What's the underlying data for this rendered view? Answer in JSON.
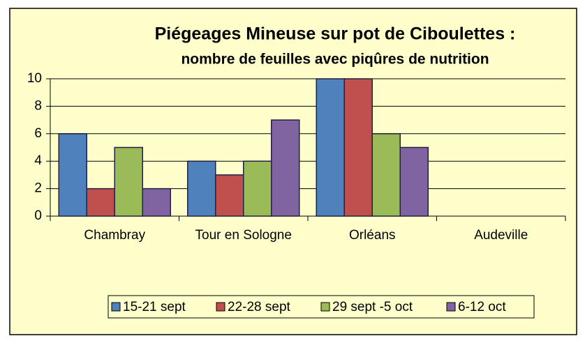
{
  "chart_data": {
    "type": "bar",
    "title": "Piégeages Mineuse sur pot de Ciboulettes :",
    "subtitle": "nombre de feuilles avec piqûres de nutrition",
    "categories": [
      "Chambray",
      "Tour en Sologne",
      "Orléans",
      "Audeville"
    ],
    "series": [
      {
        "name": "15-21 sept",
        "color": "#4f81bd",
        "values": [
          6,
          4,
          10,
          null
        ]
      },
      {
        "name": "22-28 sept",
        "color": "#c0504d",
        "values": [
          2,
          3,
          10,
          null
        ]
      },
      {
        "name": "29 sept -5 oct",
        "color": "#9bbb59",
        "values": [
          5,
          4,
          6,
          null
        ]
      },
      {
        "name": "6-12 oct",
        "color": "#8064a2",
        "values": [
          2,
          7,
          5,
          null
        ]
      }
    ],
    "ylim": [
      0,
      10
    ],
    "yticks": [
      0,
      2,
      4,
      6,
      8,
      10
    ],
    "grid": true,
    "legend": "bottom"
  }
}
